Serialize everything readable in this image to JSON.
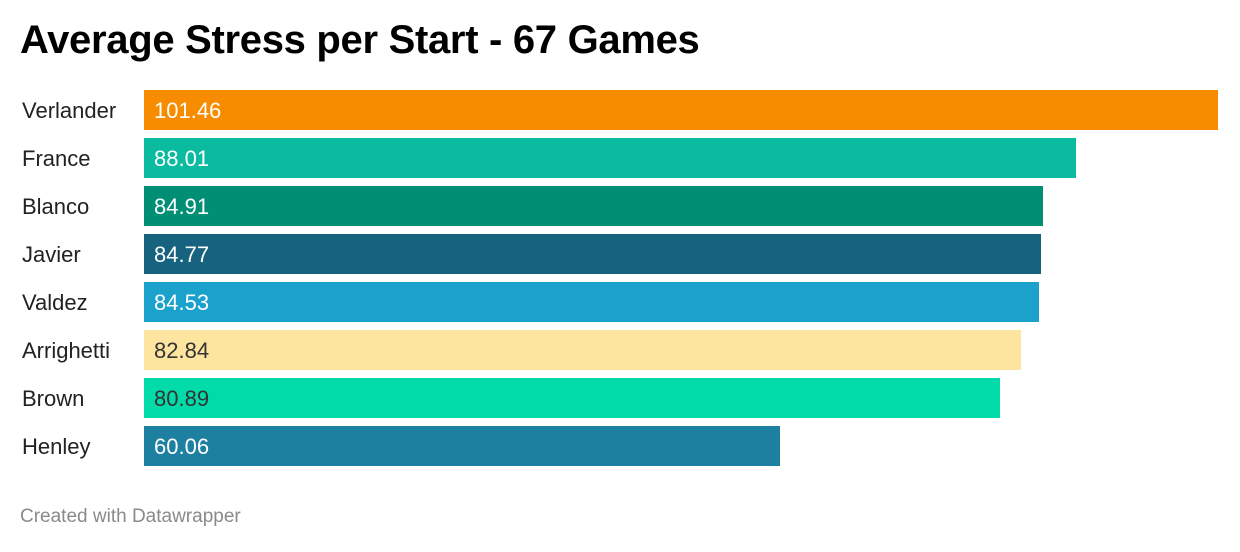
{
  "chart_data": {
    "type": "bar",
    "orientation": "horizontal",
    "title": "Average Stress per Start - 67 Games",
    "categories": [
      "Verlander",
      "France",
      "Blanco",
      "Javier",
      "Valdez",
      "Arrighetti",
      "Brown",
      "Henley"
    ],
    "values": [
      101.46,
      88.01,
      84.91,
      84.77,
      84.53,
      82.84,
      80.89,
      60.06
    ],
    "value_labels": [
      "101.46",
      "88.01",
      "84.91",
      "84.77",
      "84.53",
      "82.84",
      "80.89",
      "60.06"
    ],
    "colors": [
      "#f78c00",
      "#0bbba0",
      "#008f75",
      "#17627e",
      "#1aa2cc",
      "#fde49f",
      "#00dba9",
      "#1e80a1"
    ],
    "label_colors": [
      "#ffffff",
      "#ffffff",
      "#ffffff",
      "#ffffff",
      "#ffffff",
      "#333333",
      "#333333",
      "#ffffff"
    ],
    "xlim": [
      0,
      101.46
    ],
    "grid": false,
    "legend": "none"
  },
  "footer": {
    "credit": "Created with Datawrapper"
  }
}
